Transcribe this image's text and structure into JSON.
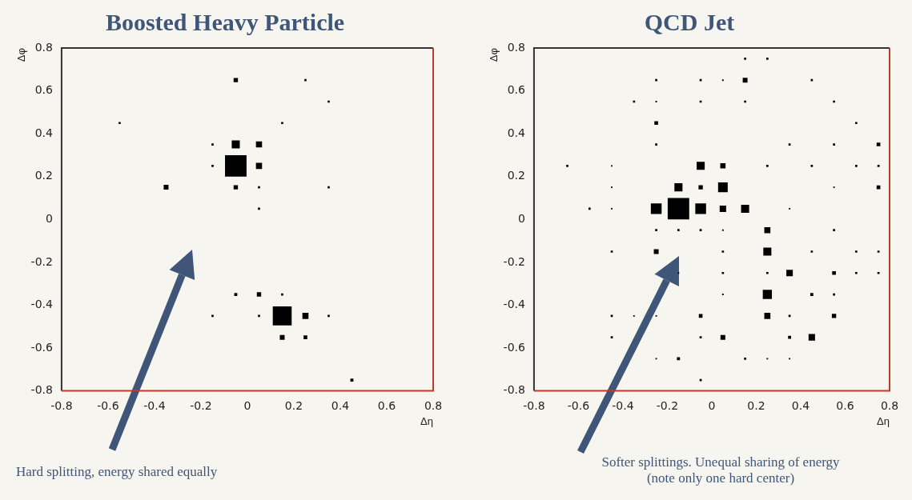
{
  "chart_data": [
    {
      "type": "bubble",
      "title": "Boosted Heavy Particle",
      "xlabel": "Δη",
      "ylabel": "Δφ",
      "xlim": [
        -0.8,
        0.8
      ],
      "ylim": [
        -0.8,
        0.8
      ],
      "xticks": [
        -0.8,
        -0.6,
        -0.4,
        -0.2,
        0,
        0.2,
        0.4,
        0.6,
        0.8
      ],
      "yticks": [
        -0.8,
        -0.6,
        -0.4,
        -0.2,
        0,
        0.2,
        0.4,
        0.6,
        0.8
      ],
      "grid": false,
      "legend": false,
      "marker": "square",
      "annotations": [
        "Hard splitting, energy shared equally"
      ],
      "series": [
        {
          "color": "#000000",
          "x": [
            -0.05,
            0.15,
            -0.05,
            0.05,
            0.05,
            -0.05,
            -0.35,
            -0.05,
            0.25,
            0.15,
            0.25,
            0.05,
            -0.05,
            0.25,
            0.35,
            -0.55,
            0.15,
            -0.15,
            -0.15,
            0.05,
            0.35,
            0.05,
            0.15,
            -0.15,
            0.05,
            0.35,
            0.45
          ],
          "values": [
            0.25,
            -0.45,
            0.35,
            0.35,
            0.25,
            0.65,
            0.15,
            0.15,
            -0.45,
            -0.55,
            -0.55,
            -0.35,
            -0.35,
            0.65,
            0.55,
            0.45,
            0.45,
            0.35,
            0.25,
            0.15,
            0.15,
            0.05,
            -0.35,
            -0.45,
            -0.45,
            -0.45,
            -0.75
          ],
          "sizes": [
            1,
            0.77,
            0.14,
            0.08,
            0.08,
            0.04,
            0.05,
            0.04,
            0.08,
            0.05,
            0.03,
            0.04,
            0.02,
            0.01,
            0.01,
            0.01,
            0.01,
            0.01,
            0.01,
            0.01,
            0.01,
            0.01,
            0.01,
            0.01,
            0.01,
            0.01,
            0.02
          ]
        }
      ]
    },
    {
      "type": "bubble",
      "title": "QCD Jet",
      "xlabel": "Δη",
      "ylabel": "Δφ",
      "xlim": [
        -0.8,
        0.8
      ],
      "ylim": [
        -0.8,
        0.8
      ],
      "xticks": [
        -0.8,
        -0.6,
        -0.4,
        -0.2,
        0,
        0.2,
        0.4,
        0.6,
        0.8
      ],
      "yticks": [
        -0.8,
        -0.6,
        -0.4,
        -0.2,
        0,
        0.2,
        0.4,
        0.6,
        0.8
      ],
      "grid": false,
      "legend": false,
      "marker": "square",
      "annotations": [
        "Softer splittings.  Unequal sharing of energy\n(note only one hard center)"
      ],
      "series": [
        {
          "color": "#000000",
          "x": [
            -0.15,
            -0.25,
            -0.05,
            -0.05,
            0.05,
            -0.15,
            0.05,
            -0.05,
            0.05,
            0.15,
            0.25,
            0.25,
            0.25,
            0.25,
            0.35,
            0.45,
            0.15,
            -0.25,
            -0.25,
            0.75,
            0.75,
            0.05,
            -0.05,
            0.55,
            0.55,
            -0.15,
            0.35,
            0.45,
            0.15,
            0.25,
            -0.25,
            -0.05,
            0.05,
            0.45,
            -0.35,
            -0.25,
            -0.05,
            0.15,
            0.55,
            0.65,
            -0.25,
            0.35,
            0.55,
            -0.65,
            -0.45,
            0.25,
            0.45,
            0.65,
            0.75,
            -0.45,
            0.55,
            -0.55,
            -0.45,
            0.35,
            -0.25,
            -0.15,
            -0.05,
            0.05,
            0.55,
            -0.45,
            0.05,
            0.45,
            0.65,
            0.75,
            -0.15,
            0.05,
            0.25,
            0.65,
            0.75,
            0.05,
            0.55,
            -0.45,
            -0.35,
            -0.25,
            0.35,
            -0.45,
            -0.05,
            -0.25,
            0.15,
            0.25,
            0.35,
            -0.05
          ],
          "values": [
            0.05,
            0.05,
            0.05,
            0.25,
            0.15,
            0.15,
            0.25,
            0.15,
            0.05,
            0.05,
            -0.05,
            -0.15,
            -0.35,
            -0.45,
            -0.25,
            -0.55,
            0.65,
            0.45,
            -0.15,
            0.35,
            0.15,
            -0.55,
            -0.45,
            -0.45,
            -0.25,
            -0.65,
            -0.55,
            -0.35,
            0.75,
            0.75,
            0.65,
            0.65,
            0.65,
            0.65,
            0.55,
            0.55,
            0.55,
            0.55,
            0.55,
            0.45,
            0.35,
            0.35,
            0.35,
            0.25,
            0.25,
            0.25,
            0.25,
            0.25,
            0.25,
            0.15,
            0.15,
            0.05,
            0.05,
            0.05,
            -0.05,
            -0.05,
            -0.05,
            -0.05,
            -0.05,
            -0.15,
            -0.15,
            -0.15,
            -0.15,
            -0.15,
            -0.25,
            -0.25,
            -0.25,
            -0.25,
            -0.25,
            -0.35,
            -0.35,
            -0.45,
            -0.45,
            -0.45,
            -0.45,
            -0.55,
            -0.55,
            -0.65,
            -0.65,
            -0.65,
            -0.65,
            -0.75
          ],
          "sizes": [
            1,
            0.25,
            0.25,
            0.14,
            0.2,
            0.14,
            0.06,
            0.04,
            0.09,
            0.14,
            0.08,
            0.14,
            0.18,
            0.08,
            0.09,
            0.09,
            0.05,
            0.03,
            0.05,
            0.03,
            0.03,
            0.05,
            0.03,
            0.04,
            0.03,
            0.02,
            0.02,
            0.02,
            0.01,
            0.01,
            0.01,
            0.01,
            0.005,
            0.01,
            0.01,
            0.005,
            0.01,
            0.01,
            0.01,
            0.01,
            0.01,
            0.01,
            0.01,
            0.01,
            0.005,
            0.01,
            0.01,
            0.01,
            0.01,
            0.005,
            0.005,
            0.01,
            0.005,
            0.005,
            0.01,
            0.01,
            0.01,
            0.005,
            0.01,
            0.01,
            0.01,
            0.01,
            0.01,
            0.01,
            0.005,
            0.01,
            0.01,
            0.01,
            0.01,
            0.005,
            0.01,
            0.01,
            0.005,
            0.005,
            0.01,
            0.01,
            0.01,
            0.005,
            0.01,
            0.005,
            0.005,
            0.01
          ]
        }
      ]
    }
  ]
}
